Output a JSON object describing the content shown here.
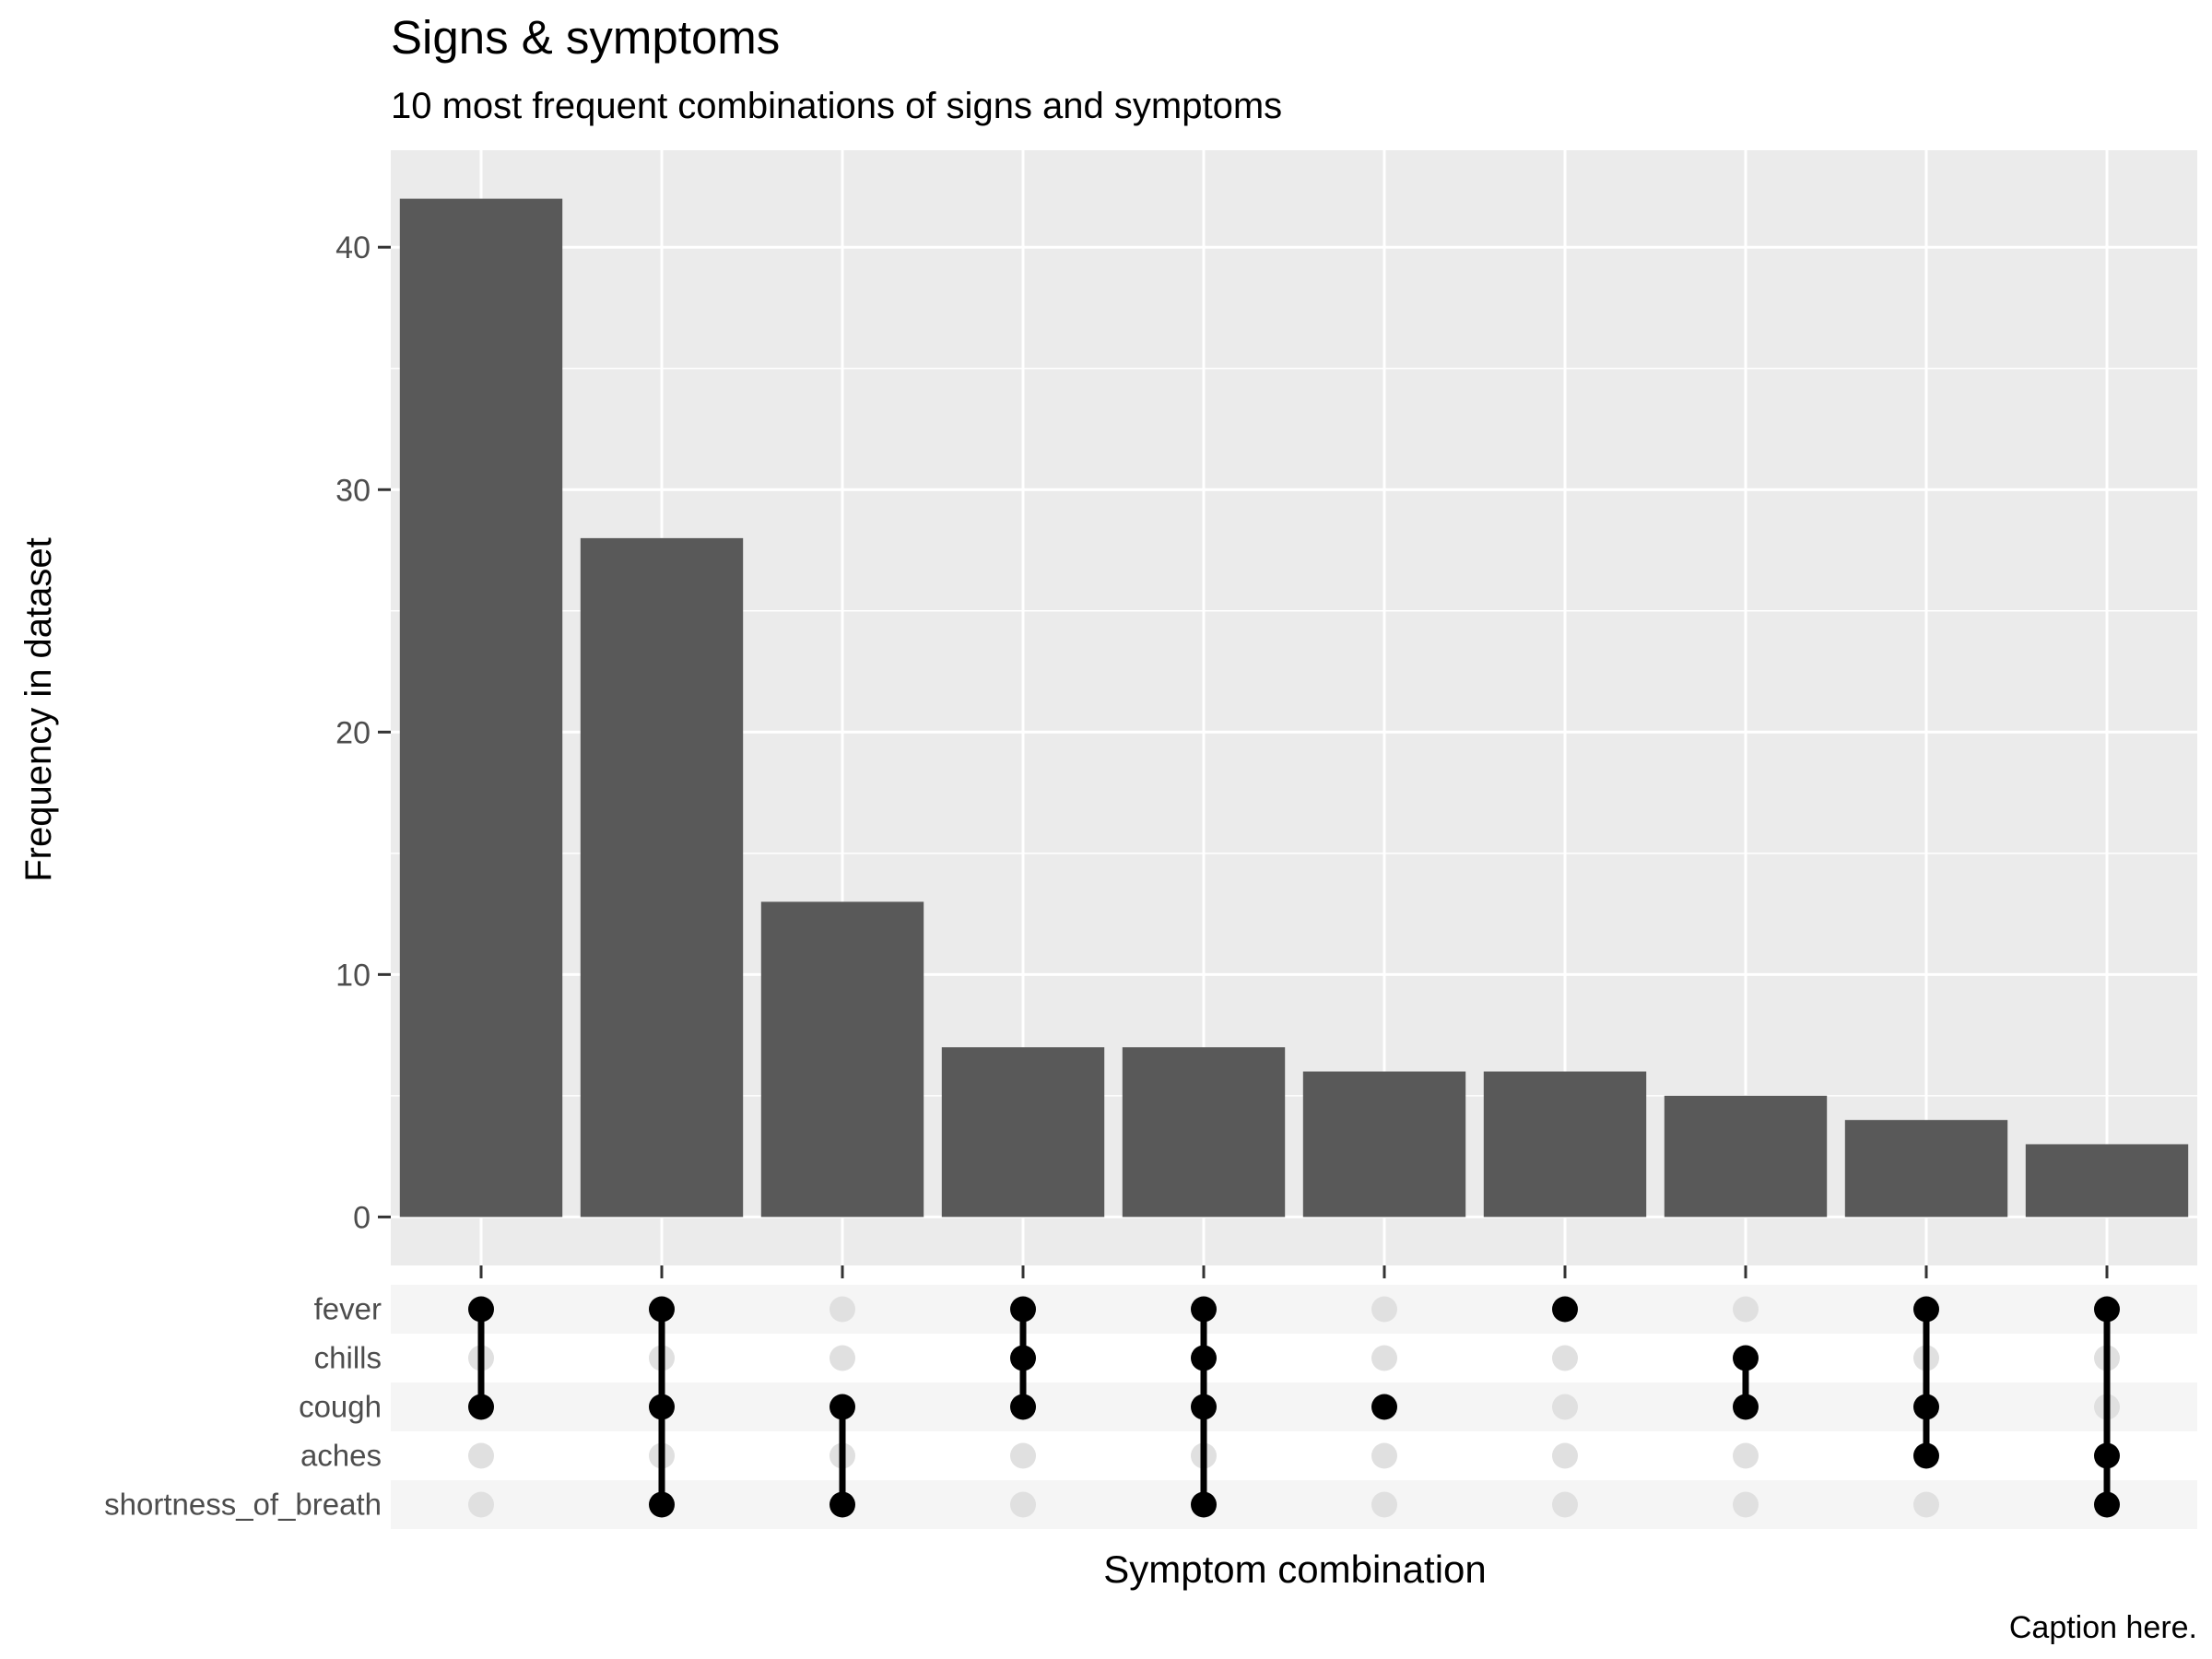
{
  "chart_data": {
    "type": "bar",
    "title": "Signs & symptoms",
    "subtitle": "10 most frequent combinations of signs and symptoms",
    "xlabel": "Symptom combination",
    "ylabel": "Frequency in dataset",
    "caption": "Caption here.",
    "ylim": [
      -2,
      44
    ],
    "yticks": [
      0,
      10,
      20,
      30,
      40
    ],
    "ytick_labels": [
      "0",
      "10",
      "20",
      "30",
      "40"
    ],
    "grid": true,
    "sets": [
      "fever",
      "chills",
      "cough",
      "aches",
      "shortness_of_breath"
    ],
    "values": [
      42,
      28,
      13,
      7,
      7,
      6,
      6,
      5,
      4,
      3
    ],
    "combinations": [
      [
        "fever",
        "cough"
      ],
      [
        "fever",
        "cough",
        "shortness_of_breath"
      ],
      [
        "cough",
        "shortness_of_breath"
      ],
      [
        "fever",
        "chills",
        "cough"
      ],
      [
        "fever",
        "chills",
        "cough",
        "shortness_of_breath"
      ],
      [
        "cough"
      ],
      [
        "fever"
      ],
      [
        "chills",
        "cough"
      ],
      [
        "fever",
        "cough",
        "aches"
      ],
      [
        "fever",
        "aches",
        "shortness_of_breath"
      ]
    ]
  },
  "colors": {
    "panel_bg": "#ebebeb",
    "grid": "#ffffff",
    "bar": "#595959",
    "dot_on": "#000000",
    "dot_off": "#e0e0e0",
    "matrix_stripe": "#f5f5f5",
    "tick": "#333333",
    "text": "#000000",
    "tick_text": "#4d4d4d"
  }
}
